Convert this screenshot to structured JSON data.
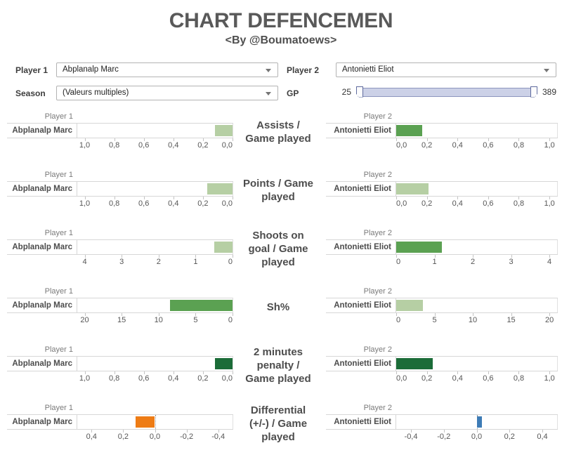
{
  "title": "CHART DEFENCEMEN",
  "subtitle": "<By @Boumatoews>",
  "controls": {
    "player1_label": "Player 1",
    "player1_value": "Abplanalp Marc",
    "player2_label": "Player 2",
    "player2_value": "Antonietti Eliot",
    "season_label": "Season",
    "season_value": "(Valeurs multiples)",
    "gp_label": "GP",
    "gp_min": "25",
    "gp_max": "389"
  },
  "colors": {
    "pale_green": "#b6cfa4",
    "green": "#5ba152",
    "dark_green": "#1b6c38",
    "orange": "#ee7c15",
    "blue": "#3e7cb6",
    "slider_track": "#ccd1e7",
    "title_text": "#595959"
  },
  "chart_data": [
    {
      "type": "bar",
      "orientation": "horizontal",
      "metric": "Assists / Game played",
      "metric_lines": [
        "Assists /",
        "Game played"
      ],
      "left": {
        "header": "Player 1",
        "player": "Abplanalp Marc",
        "value": 0.12,
        "color": "pale_green",
        "zero_line": false,
        "axis": {
          "min": 0,
          "max": 1.05,
          "reversed": true
        },
        "tick_labels": [
          "1,0",
          "0,8",
          "0,6",
          "0,4",
          "0,2",
          "0,0"
        ],
        "tick_values": [
          1.0,
          0.8,
          0.6,
          0.4,
          0.2,
          0.0
        ]
      },
      "right": {
        "header": "Player 2",
        "player": "Antonietti Eliot",
        "value": 0.17,
        "color": "green",
        "zero_line": false,
        "axis": {
          "min": 0,
          "max": 1.05,
          "reversed": false
        },
        "tick_labels": [
          "0,0",
          "0,2",
          "0,4",
          "0,6",
          "0,8",
          "1,0"
        ],
        "tick_values": [
          0.0,
          0.2,
          0.4,
          0.6,
          0.8,
          1.0
        ]
      }
    },
    {
      "type": "bar",
      "orientation": "horizontal",
      "metric": "Points / Game played",
      "metric_lines": [
        "Points / Game",
        "played"
      ],
      "left": {
        "header": "Player 1",
        "player": "Abplanalp Marc",
        "value": 0.17,
        "color": "pale_green",
        "zero_line": false,
        "axis": {
          "min": 0,
          "max": 1.05,
          "reversed": true
        },
        "tick_labels": [
          "1,0",
          "0,8",
          "0,6",
          "0,4",
          "0,2",
          "0,0"
        ],
        "tick_values": [
          1.0,
          0.8,
          0.6,
          0.4,
          0.2,
          0.0
        ]
      },
      "right": {
        "header": "Player 2",
        "player": "Antonietti Eliot",
        "value": 0.21,
        "color": "pale_green",
        "zero_line": false,
        "axis": {
          "min": 0,
          "max": 1.05,
          "reversed": false
        },
        "tick_labels": [
          "0,0",
          "0,2",
          "0,4",
          "0,6",
          "0,8",
          "1,0"
        ],
        "tick_values": [
          0.0,
          0.2,
          0.4,
          0.6,
          0.8,
          1.0
        ]
      }
    },
    {
      "type": "bar",
      "orientation": "horizontal",
      "metric": "Shoots on goal / Game played",
      "metric_lines": [
        "Shoots on",
        "goal / Game",
        "played"
      ],
      "left": {
        "header": "Player 1",
        "player": "Abplanalp Marc",
        "value": 0.5,
        "color": "pale_green",
        "zero_line": false,
        "axis": {
          "min": 0,
          "max": 4.2,
          "reversed": true
        },
        "tick_labels": [
          "4",
          "3",
          "2",
          "1",
          "0"
        ],
        "tick_values": [
          4,
          3,
          2,
          1,
          0
        ]
      },
      "right": {
        "header": "Player 2",
        "player": "Antonietti Eliot",
        "value": 1.2,
        "color": "green",
        "zero_line": false,
        "axis": {
          "min": 0,
          "max": 4.2,
          "reversed": false
        },
        "tick_labels": [
          "0",
          "1",
          "2",
          "3",
          "4"
        ],
        "tick_values": [
          0,
          1,
          2,
          3,
          4
        ]
      }
    },
    {
      "type": "bar",
      "orientation": "horizontal",
      "metric": "Sh%",
      "metric_lines": [
        "Sh%"
      ],
      "left": {
        "header": "Player 1",
        "player": "Abplanalp Marc",
        "value": 8.5,
        "color": "green",
        "zero_line": false,
        "axis": {
          "min": 0,
          "max": 21,
          "reversed": true
        },
        "tick_labels": [
          "20",
          "15",
          "10",
          "5",
          "0"
        ],
        "tick_values": [
          20,
          15,
          10,
          5,
          0
        ]
      },
      "right": {
        "header": "Player 2",
        "player": "Antonietti Eliot",
        "value": 3.5,
        "color": "pale_green",
        "zero_line": false,
        "axis": {
          "min": 0,
          "max": 21,
          "reversed": false
        },
        "tick_labels": [
          "0",
          "5",
          "10",
          "15",
          "20"
        ],
        "tick_values": [
          0,
          5,
          10,
          15,
          20
        ]
      }
    },
    {
      "type": "bar",
      "orientation": "horizontal",
      "metric": "2 minutes penalty / Game played",
      "metric_lines": [
        "2 minutes",
        "penalty /",
        "Game played"
      ],
      "left": {
        "header": "Player 1",
        "player": "Abplanalp Marc",
        "value": 0.12,
        "color": "dark_green",
        "zero_line": false,
        "axis": {
          "min": 0,
          "max": 1.05,
          "reversed": true
        },
        "tick_labels": [
          "1,0",
          "0,8",
          "0,6",
          "0,4",
          "0,2",
          "0,0"
        ],
        "tick_values": [
          1.0,
          0.8,
          0.6,
          0.4,
          0.2,
          0.0
        ]
      },
      "right": {
        "header": "Player 2",
        "player": "Antonietti Eliot",
        "value": 0.24,
        "color": "dark_green",
        "zero_line": false,
        "axis": {
          "min": 0,
          "max": 1.05,
          "reversed": false
        },
        "tick_labels": [
          "0,0",
          "0,2",
          "0,4",
          "0,6",
          "0,8",
          "1,0"
        ],
        "tick_values": [
          0.0,
          0.2,
          0.4,
          0.6,
          0.8,
          1.0
        ]
      }
    },
    {
      "type": "bar",
      "orientation": "horizontal",
      "metric": "Differential (+/-) / Game played",
      "metric_lines": [
        "Differential",
        "(+/-) / Game",
        "played"
      ],
      "left": {
        "header": "Player 1",
        "player": "Abplanalp Marc",
        "value": 0.12,
        "color": "orange",
        "zero_line": true,
        "axis": {
          "min": -0.49,
          "max": 0.49,
          "reversed": true
        },
        "tick_labels": [
          "0,4",
          "0,2",
          "0,0",
          "-0,2",
          "-0,4"
        ],
        "tick_values": [
          0.4,
          0.2,
          0.0,
          -0.2,
          -0.4
        ]
      },
      "right": {
        "header": "Player 2",
        "player": "Antonietti Eliot",
        "value": 0.03,
        "color": "blue",
        "zero_line": true,
        "axis": {
          "min": -0.49,
          "max": 0.49,
          "reversed": false
        },
        "tick_labels": [
          "-0,4",
          "-0,2",
          "0,0",
          "0,2",
          "0,4"
        ],
        "tick_values": [
          -0.4,
          -0.2,
          0.0,
          0.2,
          0.4
        ]
      }
    }
  ]
}
